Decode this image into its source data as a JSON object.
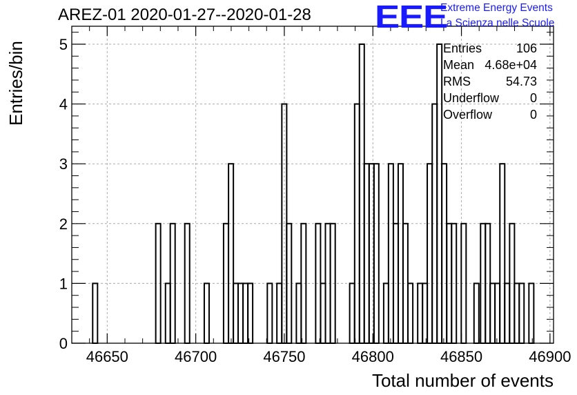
{
  "chart_data": {
    "type": "bar",
    "histogram": true,
    "title": "AREZ-01 2020-01-27--2020-01-28",
    "xlabel": "Total number of events",
    "ylabel": "Entries/bin",
    "xlim": [
      46630,
      46902
    ],
    "ylim": [
      0,
      5.3
    ],
    "grid": true,
    "x_ticks": [
      46650,
      46700,
      46750,
      46800,
      46850,
      46900
    ],
    "y_ticks": [
      0,
      1,
      2,
      3,
      4,
      5
    ],
    "bin_width": 2.74,
    "bin_lefts": [
      46641.8,
      46677.4,
      46682.9,
      46685.6,
      46693.8,
      46704.8,
      46715.7,
      46718.5,
      46721.2,
      46723.9,
      46726.7,
      46729.4,
      46740.4,
      46745.8,
      46748.6,
      46751.3,
      46756.8,
      46759.5,
      46767.7,
      46770.5,
      46773.2,
      46776.0,
      46786.9,
      46789.7,
      46792.4,
      46795.1,
      46797.9,
      46800.6,
      46806.1,
      46808.8,
      46811.6,
      46814.3,
      46817.0,
      46819.8,
      46825.3,
      46828.0,
      46830.7,
      46833.5,
      46836.2,
      46838.9,
      46841.7,
      46844.4,
      46849.9,
      46857.1,
      46860.8,
      46863.5,
      46866.2,
      46868.9,
      46871.7,
      46874.4,
      46877.2,
      46879.9,
      46882.6,
      46888.1
    ],
    "values": [
      1,
      2,
      1,
      2,
      2,
      1,
      2,
      3,
      1,
      1,
      1,
      1,
      1,
      1,
      4,
      2,
      1,
      2,
      2,
      1,
      2,
      2,
      1,
      4,
      5,
      3,
      3,
      3,
      1,
      3,
      2,
      3,
      2,
      1,
      1,
      1,
      3,
      4,
      5,
      3,
      2,
      2,
      2,
      1,
      2,
      2,
      1,
      1,
      3,
      1,
      2,
      1,
      1,
      1
    ],
    "stats": [
      {
        "label": "Entries",
        "value": "106"
      },
      {
        "label": "Mean",
        "value": "4.68e+04"
      },
      {
        "label": "RMS",
        "value": "54.73"
      },
      {
        "label": "Underflow",
        "value": "0"
      },
      {
        "label": "Overflow",
        "value": "0"
      }
    ]
  },
  "logo": {
    "mark": "EEE",
    "line1": "Extreme Energy Events",
    "line2": "La Scienza nelle Scuole",
    "color": "#1a1aff"
  }
}
